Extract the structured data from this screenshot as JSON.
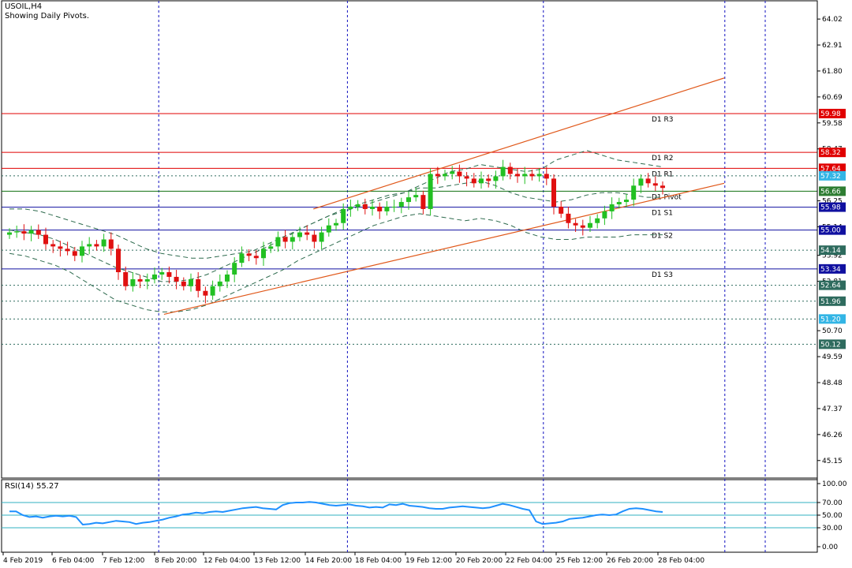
{
  "header": {
    "symbol": "USOIL,H4",
    "subtitle": "Showing Daily Pivots."
  },
  "rsi_header": "RSI(14) 55.27",
  "chart_data": {
    "type": "candlestick",
    "symbol": "USOIL",
    "timeframe": "H4",
    "y_axis_ticks": [
      "64.02",
      "62.91",
      "61.80",
      "60.69",
      "59.58",
      "58.47",
      "56.25",
      "55.14",
      "53.92",
      "52.81",
      "50.70",
      "49.59",
      "48.48",
      "47.37",
      "46.26",
      "45.15"
    ],
    "ylim": [
      44.4,
      64.8
    ],
    "x_labels": [
      "4 Feb 2019",
      "6 Feb 04:00",
      "7 Feb 12:00",
      "8 Feb 20:00",
      "12 Feb 04:00",
      "13 Feb 12:00",
      "14 Feb 20:00",
      "18 Feb 04:00",
      "19 Feb 12:00",
      "20 Feb 20:00",
      "22 Feb 04:00",
      "25 Feb 12:00",
      "26 Feb 20:00",
      "28 Feb 04:00"
    ],
    "pivots": [
      {
        "name": "D1 R3",
        "value": 59.98,
        "color": "#e00000"
      },
      {
        "name": "D1 R2",
        "value": 58.32,
        "color": "#e00000"
      },
      {
        "name": "D1 R1",
        "value": 57.64,
        "color": "#e00000"
      },
      {
        "name": "D1 Pivot",
        "value": 56.66,
        "color": "#107010"
      },
      {
        "name": "D1 S1",
        "value": 55.98,
        "color": "#1010a0"
      },
      {
        "name": "D1 S2",
        "value": 55.0,
        "color": "#1010a0"
      },
      {
        "name": "D1 S3",
        "value": 53.34,
        "color": "#1010a0"
      }
    ],
    "price_badges": [
      {
        "value": "59.98",
        "color": "#e00000"
      },
      {
        "value": "58.32",
        "color": "#e00000"
      },
      {
        "value": "57.64",
        "color": "#e00000"
      },
      {
        "value": "57.32",
        "color": "#33b5e5"
      },
      {
        "value": "56.66",
        "color": "#2e7d32"
      },
      {
        "value": "55.98",
        "color": "#1010a0"
      },
      {
        "value": "55.00",
        "color": "#1010a0"
      },
      {
        "value": "54.14",
        "color": "#2e6b5e"
      },
      {
        "value": "53.34",
        "color": "#1010a0"
      },
      {
        "value": "52.64",
        "color": "#2e6b5e"
      },
      {
        "value": "51.96",
        "color": "#2e6b5e"
      },
      {
        "value": "51.20",
        "color": "#33b5e5"
      },
      {
        "value": "50.12",
        "color": "#2e6b5e"
      }
    ],
    "dotted_levels": [
      57.32,
      54.14,
      52.64,
      51.96,
      51.2,
      50.12
    ],
    "candles_close": [
      54.9,
      54.95,
      54.85,
      55.0,
      54.8,
      54.4,
      54.3,
      54.2,
      54.1,
      53.9,
      54.3,
      54.4,
      54.3,
      54.6,
      54.2,
      53.2,
      52.6,
      52.9,
      52.8,
      52.9,
      53.1,
      53.2,
      53.0,
      52.8,
      52.6,
      52.9,
      52.4,
      52.2,
      52.6,
      52.8,
      53.1,
      53.6,
      54.0,
      53.9,
      53.8,
      54.2,
      54.3,
      54.7,
      54.5,
      54.7,
      54.9,
      54.8,
      54.5,
      54.9,
      55.2,
      55.3,
      55.9,
      56.0,
      56.1,
      55.9,
      56.0,
      55.8,
      56.0,
      56.0,
      56.2,
      56.4,
      56.5,
      55.9,
      57.4,
      57.3,
      57.4,
      57.5,
      57.3,
      57.2,
      57.0,
      57.2,
      57.1,
      57.3,
      57.7,
      57.4,
      57.3,
      57.4,
      57.3,
      57.4,
      57.2,
      56.0,
      55.7,
      55.3,
      55.2,
      55.1,
      55.3,
      55.5,
      55.8,
      56.1,
      56.2,
      56.3,
      56.9,
      57.2,
      57.0,
      56.9,
      56.8
    ],
    "bollinger": {
      "period": 20,
      "upper": [
        55.9,
        55.9,
        55.8,
        55.6,
        55.4,
        55.2,
        55.0,
        54.8,
        54.5,
        54.2,
        54.0,
        53.9,
        53.8,
        53.8,
        53.9,
        54.0,
        54.1,
        54.4,
        54.7,
        55.0,
        55.3,
        55.6,
        55.8,
        56.0,
        56.2,
        56.4,
        56.6,
        56.9,
        57.2,
        57.5,
        57.6,
        57.8,
        57.7,
        57.6,
        57.5,
        57.6,
        58.0,
        58.2,
        58.4,
        58.2,
        58.0,
        57.9,
        57.8,
        57.7
      ],
      "middle": [
        55.0,
        54.9,
        54.8,
        54.6,
        54.3,
        54.0,
        53.7,
        53.4,
        53.2,
        53.0,
        52.8,
        52.8,
        52.9,
        53.1,
        53.4,
        53.7,
        54.0,
        54.3,
        54.6,
        55.0,
        55.3,
        55.6,
        55.9,
        56.1,
        56.3,
        56.5,
        56.6,
        56.8,
        56.8,
        56.9,
        57.0,
        57.1,
        56.9,
        56.6,
        56.4,
        56.3,
        56.2,
        56.3,
        56.5,
        56.6,
        56.6,
        56.5,
        56.4,
        56.4
      ],
      "lower": [
        54.0,
        53.9,
        53.7,
        53.5,
        53.2,
        52.8,
        52.4,
        52.0,
        51.8,
        51.6,
        51.5,
        51.5,
        51.6,
        51.8,
        52.1,
        52.4,
        52.7,
        53.0,
        53.3,
        53.7,
        54.0,
        54.3,
        54.6,
        54.9,
        55.2,
        55.4,
        55.6,
        55.7,
        55.6,
        55.5,
        55.4,
        55.5,
        55.4,
        55.2,
        54.9,
        54.7,
        54.6,
        54.6,
        54.7,
        54.7,
        54.7,
        54.8,
        54.8,
        54.8
      ]
    },
    "trend_channel": {
      "lower": [
        {
          "bar": 38,
          "price": 51.4
        },
        {
          "bar": 173,
          "price": 57.0
        }
      ],
      "upper": [
        {
          "bar": 74,
          "price": 55.9
        },
        {
          "bar": 173,
          "price": 61.5
        }
      ]
    },
    "rsi": {
      "period": 14,
      "current": 55.27,
      "ticks": [
        "100.00",
        "70.00",
        "50.00",
        "30.00",
        "0.00"
      ],
      "levels": [
        70,
        50,
        30
      ],
      "values": [
        56,
        56,
        50,
        47,
        48,
        46,
        48,
        49,
        48,
        49,
        47,
        35,
        36,
        38,
        37,
        39,
        41,
        40,
        39,
        36,
        38,
        39,
        41,
        43,
        46,
        48,
        51,
        52,
        54,
        53,
        55,
        56,
        55,
        57,
        59,
        61,
        62,
        63,
        61,
        60,
        59,
        66,
        69,
        70,
        70,
        71,
        70,
        68,
        66,
        65,
        66,
        67,
        65,
        64,
        62,
        63,
        62,
        67,
        66,
        68,
        65,
        64,
        63,
        61,
        60,
        60,
        62,
        63,
        64,
        63,
        62,
        61,
        62,
        65,
        68,
        66,
        63,
        60,
        58,
        40,
        36,
        37,
        38,
        40,
        44,
        45,
        46,
        48,
        50,
        51,
        50,
        51,
        56,
        60,
        61,
        60,
        58,
        56,
        55
      ]
    }
  }
}
